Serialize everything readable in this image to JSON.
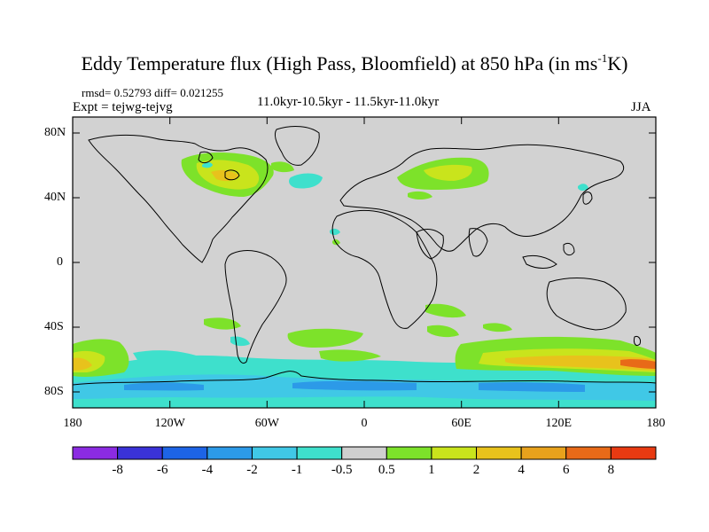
{
  "title_main": "Eddy Temperature flux (High Pass, Bloomfield) at 850 hPa (in ms",
  "title_sup": "-1",
  "title_tail": "K)",
  "stats": {
    "rmsd_label": "rmsd= 0.52793 diff= 0.021255",
    "expt_label": "Expt = tejwg-tejvg",
    "period_label": "11.0kyr-10.5kyr - 11.5kyr-11.0kyr",
    "season_label": "JJA"
  },
  "map": {
    "lon_range": [
      -180,
      180
    ],
    "lat_range": [
      -90,
      90
    ],
    "background_color": "#d2d2d2",
    "y_ticks": [
      "80N",
      "40N",
      "0",
      "40S",
      "80S"
    ],
    "x_ticks": [
      "180",
      "120W",
      "60W",
      "0",
      "60E",
      "120E",
      "180"
    ]
  },
  "colorbar": {
    "colors": [
      "#8b2be2",
      "#3a32d8",
      "#1d64e6",
      "#2c9ae8",
      "#40c8e6",
      "#3ee0cc",
      "#cfcfcf",
      "#7de22a",
      "#c9e41c",
      "#e8c21c",
      "#e8a21c",
      "#e86a18",
      "#e83a12"
    ],
    "tick_labels": [
      "-8",
      "-6",
      "-4",
      "-2",
      "-1",
      "-0.5",
      "0.5",
      "1",
      "2",
      "4",
      "6",
      "8"
    ]
  }
}
